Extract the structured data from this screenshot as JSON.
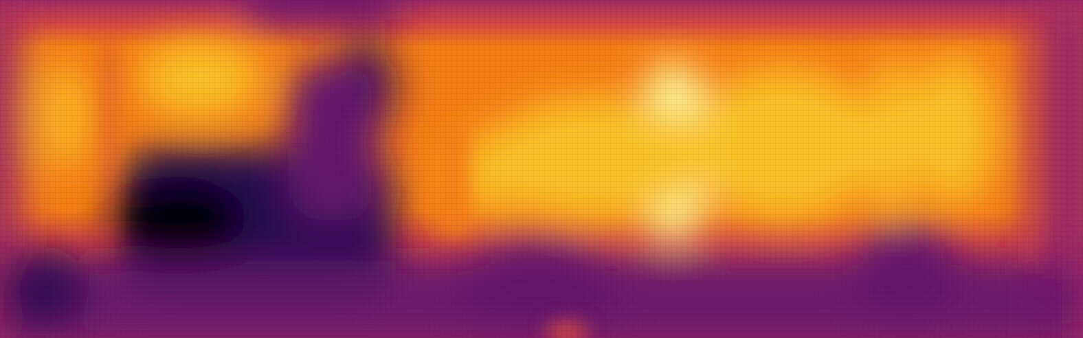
{
  "image": {
    "kind": "depth-map",
    "colormap": "inferno",
    "palette": {
      "black": "#000004",
      "deep_purple": "#280b54",
      "purple": "#65156e",
      "magenta": "#9f2a63",
      "red_orange": "#d44842",
      "orange": "#f57d15",
      "amber": "#fac127",
      "pale_yellow": "#fcffa4"
    }
  }
}
